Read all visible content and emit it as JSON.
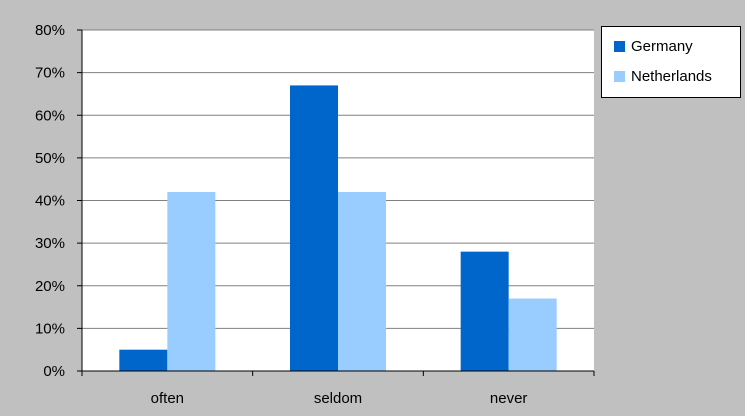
{
  "chart_data": {
    "type": "bar",
    "categories": [
      "often",
      "seldom",
      "never"
    ],
    "series": [
      {
        "name": "Germany",
        "values": [
          5,
          67,
          28
        ],
        "color": "#0066cc"
      },
      {
        "name": "Netherlands",
        "values": [
          42,
          42,
          17
        ],
        "color": "#99ccff"
      }
    ],
    "ylim": [
      0,
      80
    ],
    "yticks": [
      "0%",
      "10%",
      "20%",
      "30%",
      "40%",
      "50%",
      "60%",
      "70%",
      "80%"
    ],
    "ytick_values": [
      0,
      10,
      20,
      30,
      40,
      50,
      60,
      70,
      80
    ],
    "grid": true,
    "legend_position": "right",
    "title": "",
    "xlabel": "",
    "ylabel": "",
    "plot_background": "#ffffff",
    "chart_background": "#c0c0c0",
    "gridline_color": "#808080"
  }
}
